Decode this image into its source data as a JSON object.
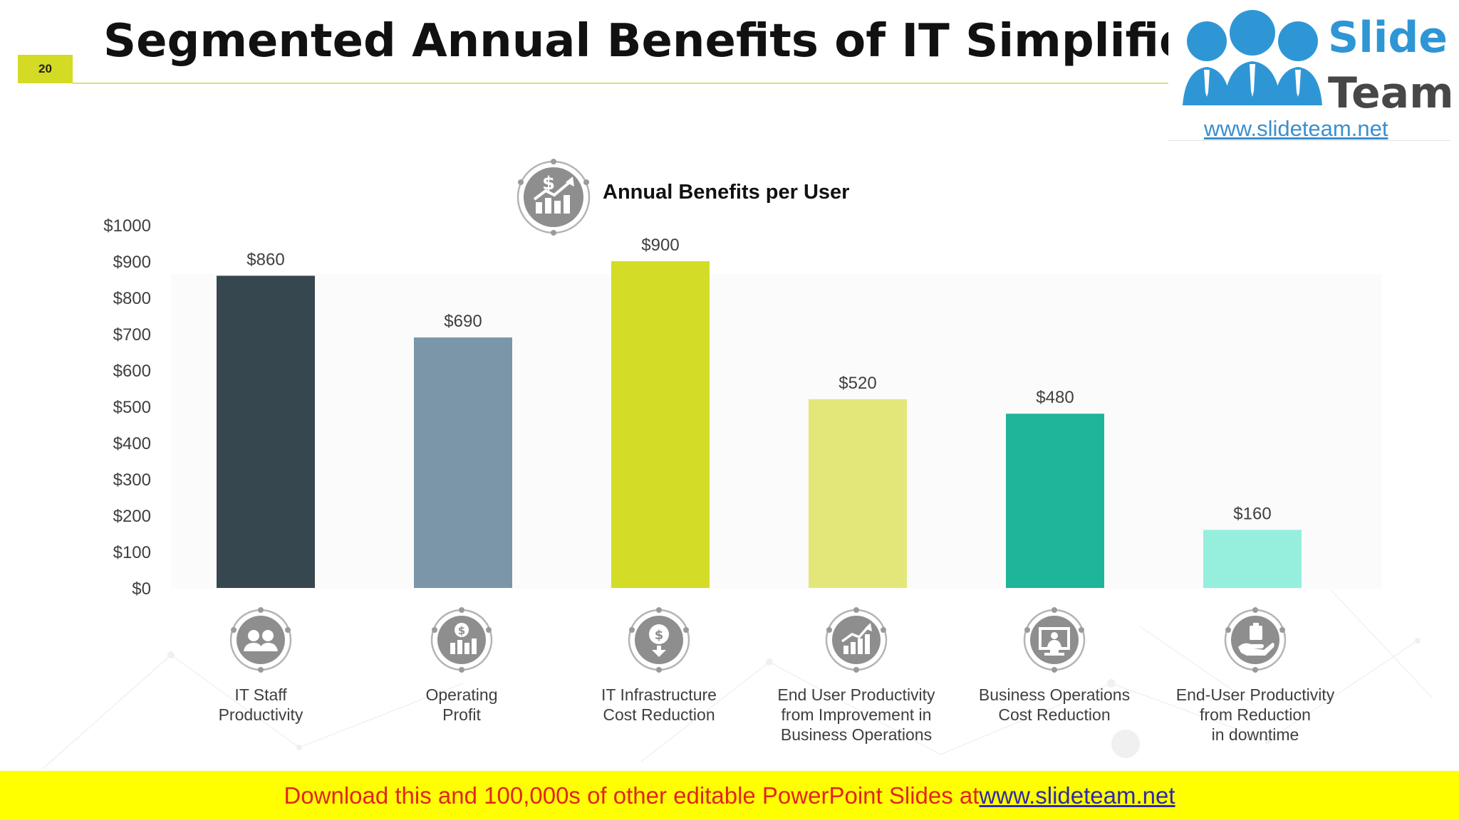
{
  "slide": {
    "title": "Segmented Annual Benefits of IT Simplification",
    "number": "20"
  },
  "logo": {
    "word_top": "Slide",
    "word_bottom": "Team",
    "url": "www.slideteam.net"
  },
  "chart_header": {
    "title": "Annual Benefits per User",
    "icon": "dollar-growth-chart-icon"
  },
  "categories": [
    {
      "label": "IT Staff\nProductivity",
      "icon": "staff-people-icon"
    },
    {
      "label": "Operating\nProfit",
      "icon": "profit-chart-icon"
    },
    {
      "label": "IT Infrastructure\nCost Reduction",
      "icon": "dollar-down-icon"
    },
    {
      "label": "End User Productivity\nfrom Improvement in\nBusiness Operations",
      "icon": "rising-bars-icon"
    },
    {
      "label": "Business Operations\nCost Reduction",
      "icon": "monitor-presentation-icon"
    },
    {
      "label": "End-User Productivity\nfrom Reduction\nin downtime",
      "icon": "hand-care-icon"
    }
  ],
  "chart_data": {
    "type": "bar",
    "title": "Annual Benefits per User",
    "categories": [
      "IT Staff Productivity",
      "Operating Profit",
      "IT Infrastructure Cost Reduction",
      "End User Productivity from Improvement in Business Operations",
      "Business Operations Cost Reduction",
      "End-User Productivity from Reduction in downtime"
    ],
    "values": [
      860,
      690,
      900,
      520,
      480,
      160
    ],
    "value_labels": [
      "$860",
      "$690",
      "$900",
      "$520",
      "$480",
      "$160"
    ],
    "colors": [
      "#37474f",
      "#7a96a8",
      "#d3dc27",
      "#e3e77a",
      "#1eb59a",
      "#96efdd"
    ],
    "ylim": [
      0,
      1000
    ],
    "yticks": [
      0,
      100,
      200,
      300,
      400,
      500,
      600,
      700,
      800,
      900,
      1000
    ],
    "ytick_labels": [
      "$0",
      "$100",
      "$200",
      "$300",
      "$400",
      "$500",
      "$600",
      "$700",
      "$800",
      "$900",
      "$1000"
    ],
    "grid": false,
    "legend": "none"
  },
  "footer": {
    "text": "Download this and 100,000s of other editable PowerPoint Slides at ",
    "link": "www.slideteam.net"
  },
  "colors": {
    "accent": "#d4db24",
    "footer_band": "#ffff00",
    "footer_text": "#e0261e",
    "footer_link": "#2e2aa7",
    "icon_gray": "#8e8e8e",
    "logo_blue": "#2f96d6"
  }
}
